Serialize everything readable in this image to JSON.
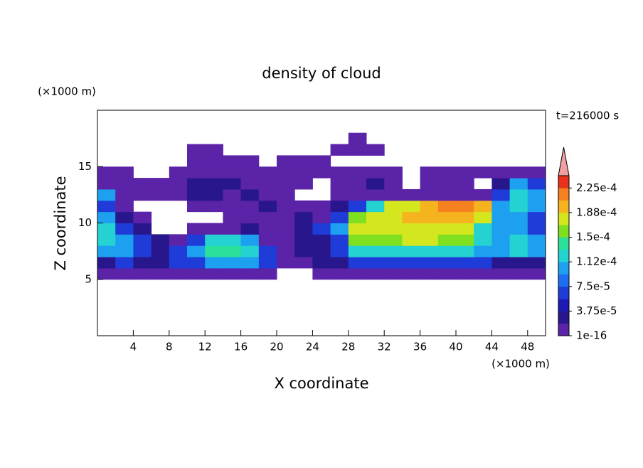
{
  "chart_data": {
    "type": "contour",
    "title": "density of cloud",
    "x_unit_label": "(×1000 m)",
    "y_unit_label": "(×1000 m)",
    "time_label": "t=216000 s",
    "xlabel": "X coordinate",
    "ylabel": "Z coordinate",
    "xlim": [
      0,
      50
    ],
    "ylim": [
      0,
      20
    ],
    "xticks": [
      4,
      8,
      12,
      16,
      20,
      24,
      28,
      32,
      36,
      40,
      44,
      48
    ],
    "yticks": [
      5,
      10,
      15
    ],
    "x": [
      1,
      3,
      5,
      7,
      9,
      11,
      13,
      15,
      17,
      19,
      21,
      23,
      25,
      27,
      29,
      31,
      33,
      35,
      37,
      39,
      41,
      43,
      45,
      47,
      49
    ],
    "y": [
      5.5,
      6.5,
      7.5,
      8.5,
      9.5,
      10.5,
      11.5,
      12.5,
      13.5,
      14.5,
      15.5,
      16.5,
      17.5
    ],
    "z": [
      [
        1e-05,
        1e-05,
        1e-05,
        1e-05,
        1e-05,
        1e-05,
        1e-05,
        1e-05,
        1e-05,
        1e-05,
        null,
        null,
        1e-05,
        1e-05,
        1e-05,
        1e-05,
        1e-05,
        1e-05,
        1e-05,
        1e-05,
        1e-05,
        1e-05,
        1e-05,
        1e-05,
        1e-05
      ],
      [
        3e-05,
        6.5e-05,
        3e-05,
        3e-05,
        6.5e-05,
        6.5e-05,
        9.5e-05,
        9.5e-05,
        9.5e-05,
        6.5e-05,
        1e-05,
        1e-05,
        3e-05,
        3e-05,
        6.5e-05,
        6.5e-05,
        6.5e-05,
        6.5e-05,
        6.5e-05,
        6.5e-05,
        6.5e-05,
        6.5e-05,
        3e-05,
        3e-05,
        3e-05
      ],
      [
        9.5e-05,
        9.5e-05,
        6.5e-05,
        3e-05,
        6.5e-05,
        9.5e-05,
        0.000145,
        0.000145,
        0.000125,
        6.5e-05,
        1e-05,
        3e-05,
        3e-05,
        6.5e-05,
        0.000125,
        0.000125,
        0.000125,
        0.000125,
        0.000125,
        0.000125,
        0.000125,
        9.5e-05,
        9.5e-05,
        0.000125,
        9.5e-05
      ],
      [
        0.000125,
        9.5e-05,
        6.5e-05,
        3e-05,
        1e-05,
        6.5e-05,
        0.000125,
        0.000125,
        9.5e-05,
        1e-05,
        1e-05,
        3e-05,
        3e-05,
        6.5e-05,
        0.00016,
        0.00016,
        0.00016,
        0.00018,
        0.00018,
        0.00016,
        0.00016,
        0.000125,
        9.5e-05,
        0.000125,
        9.5e-05
      ],
      [
        0.000125,
        6.5e-05,
        3e-05,
        null,
        null,
        1e-05,
        1e-05,
        1e-05,
        3e-05,
        1e-05,
        1e-05,
        3e-05,
        6.5e-05,
        9.5e-05,
        0.00018,
        0.00018,
        0.00018,
        0.00018,
        0.00018,
        0.00018,
        0.00018,
        0.000125,
        9.5e-05,
        9.5e-05,
        6.5e-05
      ],
      [
        9.5e-05,
        3e-05,
        1e-05,
        null,
        null,
        null,
        null,
        1e-05,
        1e-05,
        1e-05,
        1e-05,
        3e-05,
        1e-05,
        6.5e-05,
        0.00016,
        0.00018,
        0.00018,
        0.0002,
        0.0002,
        0.0002,
        0.0002,
        0.00018,
        9.5e-05,
        9.5e-05,
        6.5e-05
      ],
      [
        6.5e-05,
        1e-05,
        null,
        null,
        null,
        1e-05,
        1e-05,
        1e-05,
        1e-05,
        3e-05,
        1e-05,
        1e-05,
        1e-05,
        3e-05,
        6.5e-05,
        0.000125,
        0.00018,
        0.00018,
        0.0002,
        0.00022,
        0.00022,
        0.0002,
        9.5e-05,
        0.000125,
        9.5e-05
      ],
      [
        9.5e-05,
        1e-05,
        1e-05,
        1e-05,
        1e-05,
        3e-05,
        3e-05,
        1e-05,
        3e-05,
        1e-05,
        1e-05,
        null,
        null,
        1e-05,
        1e-05,
        1e-05,
        1e-05,
        1e-05,
        1e-05,
        1e-05,
        1e-05,
        1e-05,
        6.5e-05,
        0.000125,
        9.5e-05
      ],
      [
        1e-05,
        1e-05,
        1e-05,
        1e-05,
        1e-05,
        3e-05,
        3e-05,
        3e-05,
        1e-05,
        1e-05,
        1e-05,
        1e-05,
        null,
        1e-05,
        1e-05,
        3e-05,
        1e-05,
        null,
        1e-05,
        1e-05,
        1e-05,
        null,
        3e-05,
        9.5e-05,
        6.5e-05
      ],
      [
        1e-05,
        1e-05,
        null,
        null,
        1e-05,
        1e-05,
        1e-05,
        1e-05,
        1e-05,
        1e-05,
        1e-05,
        1e-05,
        1e-05,
        1e-05,
        1e-05,
        1e-05,
        1e-05,
        null,
        1e-05,
        1e-05,
        1e-05,
        1e-05,
        1e-05,
        1e-05,
        1e-05
      ],
      [
        null,
        null,
        null,
        null,
        null,
        1e-05,
        1e-05,
        1e-05,
        1e-05,
        null,
        1e-05,
        1e-05,
        1e-05,
        null,
        null,
        null,
        null,
        null,
        null,
        null,
        null,
        null,
        null,
        null,
        null
      ],
      [
        null,
        null,
        null,
        null,
        null,
        1e-05,
        1e-05,
        null,
        null,
        null,
        null,
        null,
        null,
        1e-05,
        1e-05,
        1e-05,
        null,
        null,
        null,
        null,
        null,
        null,
        null,
        null,
        null
      ],
      [
        null,
        null,
        null,
        null,
        null,
        null,
        null,
        null,
        null,
        null,
        null,
        null,
        null,
        null,
        1e-05,
        null,
        null,
        null,
        null,
        null,
        null,
        null,
        null,
        null,
        null
      ]
    ],
    "levels": [
      1e-16,
      1.875e-05,
      3.75e-05,
      5.625e-05,
      7.5e-05,
      9.375e-05,
      0.0001125,
      0.00013125,
      0.00015,
      0.00016875,
      0.0001875,
      0.00020625,
      0.000225,
      0.00024375
    ],
    "colors": [
      "#5b23a8",
      "#28178c",
      "#1c1cb4",
      "#1f3cd8",
      "#1e6ef0",
      "#1ea0f0",
      "#24d2d2",
      "#2ae09a",
      "#7ee01e",
      "#d4e61e",
      "#f5b41e",
      "#f5821e",
      "#e8321e"
    ],
    "extend_color": "#f0a0a0",
    "colorbar_ticks": [
      {
        "value": 1e-16,
        "label": "1e-16"
      },
      {
        "value": 3.75e-05,
        "label": "3.75e-5"
      },
      {
        "value": 7.5e-05,
        "label": "7.5e-5"
      },
      {
        "value": 0.0001125,
        "label": "1.12e-4"
      },
      {
        "value": 0.00015,
        "label": "1.5e-4"
      },
      {
        "value": 0.0001875,
        "label": "1.88e-4"
      },
      {
        "value": 0.000225,
        "label": "2.25e-4"
      }
    ]
  }
}
